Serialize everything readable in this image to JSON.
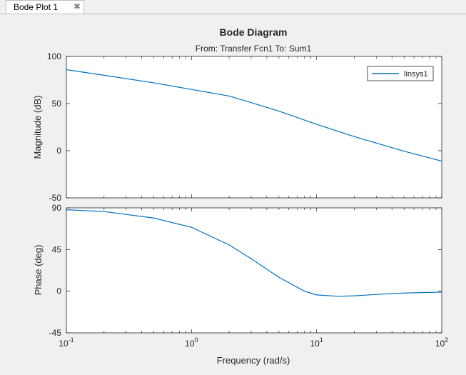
{
  "tab": {
    "label": "Bode Plot 1",
    "close_icon": "close-icon"
  },
  "chart_data": {
    "type": "line",
    "title": "Bode Diagram",
    "subtitle": "From: Transfer Fcn1  To: Sum1",
    "xlabel": "Frequency  (rad/s)",
    "xscale": "log",
    "xlim": [
      0.1,
      100
    ],
    "x_ticks": [
      {
        "base": "10",
        "exp": "-1"
      },
      {
        "base": "10",
        "exp": "0"
      },
      {
        "base": "10",
        "exp": "1"
      },
      {
        "base": "10",
        "exp": "2"
      }
    ],
    "legend": {
      "entries": [
        "linsys1"
      ],
      "placement": "top-right",
      "color": "#0072bd"
    },
    "panels": [
      {
        "name": "magnitude",
        "ylabel": "Magnitude (dB)",
        "ylim": [
          -50,
          100
        ],
        "yticks": [
          "100",
          "50",
          "0",
          "-50"
        ],
        "tick_values": [
          100,
          50,
          0,
          -50
        ],
        "series": [
          {
            "name": "linsys1",
            "x": [
              0.1,
              0.2,
              0.5,
              1,
              2,
              3,
              5,
              10,
              20,
              50,
              100
            ],
            "y": [
              86,
              80,
              72,
              65,
              58,
              51,
              42,
              28,
              15,
              -0.5,
              -11
            ]
          }
        ]
      },
      {
        "name": "phase",
        "ylabel": "Phase (deg)",
        "ylim": [
          -45,
          90
        ],
        "yticks": [
          "90",
          "45",
          "0",
          "-45"
        ],
        "tick_values": [
          90,
          45,
          0,
          -45
        ],
        "series": [
          {
            "name": "linsys1",
            "x": [
              0.1,
              0.2,
              0.5,
              1,
              2,
              3,
              5,
              8,
              10,
              15,
              20,
              30,
              50,
              100
            ],
            "y": [
              88,
              86,
              79,
              69,
              50,
              35,
              15,
              0,
              -4,
              -5.5,
              -5,
              -3.5,
              -2,
              -1
            ]
          }
        ]
      }
    ],
    "colors": {
      "line": "#0072bd",
      "axis": "#262626",
      "grid": "none"
    }
  }
}
